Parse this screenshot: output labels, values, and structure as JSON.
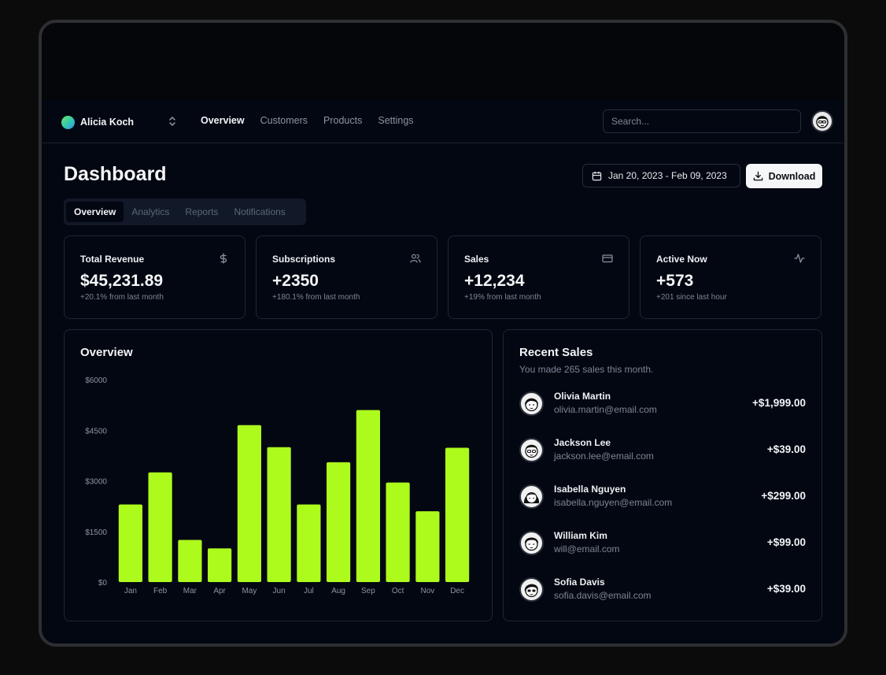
{
  "team": {
    "name": "Alicia Koch"
  },
  "nav": {
    "links": [
      "Overview",
      "Customers",
      "Products",
      "Settings"
    ]
  },
  "search": {
    "placeholder": "Search..."
  },
  "header": {
    "title": "Dashboard",
    "date_range": "Jan 20, 2023 - Feb 09, 2023",
    "download_label": "Download"
  },
  "tabs": [
    "Overview",
    "Analytics",
    "Reports",
    "Notifications"
  ],
  "stats": [
    {
      "label": "Total Revenue",
      "value": "$45,231.89",
      "sub": "+20.1% from last month",
      "icon": "dollar-icon"
    },
    {
      "label": "Subscriptions",
      "value": "+2350",
      "sub": "+180.1% from last month",
      "icon": "users-icon"
    },
    {
      "label": "Sales",
      "value": "+12,234",
      "sub": "+19% from last month",
      "icon": "credit-card-icon"
    },
    {
      "label": "Active Now",
      "value": "+573",
      "sub": "+201 since last hour",
      "icon": "activity-icon"
    }
  ],
  "overview": {
    "title": "Overview"
  },
  "chart_data": {
    "type": "bar",
    "categories": [
      "Jan",
      "Feb",
      "Mar",
      "Apr",
      "May",
      "Jun",
      "Jul",
      "Aug",
      "Sep",
      "Oct",
      "Nov",
      "Dec"
    ],
    "values": [
      2300,
      3250,
      1250,
      1000,
      4650,
      4000,
      2300,
      3550,
      5100,
      2950,
      2100,
      3980
    ],
    "yticks": [
      "$0",
      "$1500",
      "$3000",
      "$4500",
      "$6000"
    ],
    "ylim": [
      0,
      6000
    ],
    "bar_color": "#adfa1d",
    "grid": false
  },
  "recent_sales": {
    "title": "Recent Sales",
    "subtitle": "You made 265 sales this month.",
    "items": [
      {
        "name": "Olivia Martin",
        "email": "olivia.martin@email.com",
        "amount": "+$1,999.00"
      },
      {
        "name": "Jackson Lee",
        "email": "jackson.lee@email.com",
        "amount": "+$39.00"
      },
      {
        "name": "Isabella Nguyen",
        "email": "isabella.nguyen@email.com",
        "amount": "+$299.00"
      },
      {
        "name": "William Kim",
        "email": "will@email.com",
        "amount": "+$99.00"
      },
      {
        "name": "Sofia Davis",
        "email": "sofia.davis@email.com",
        "amount": "+$39.00"
      }
    ]
  },
  "colors": {
    "background": "#030711",
    "border": "#1f2634",
    "accent": "#adfa1d",
    "muted": "#7c8595"
  }
}
